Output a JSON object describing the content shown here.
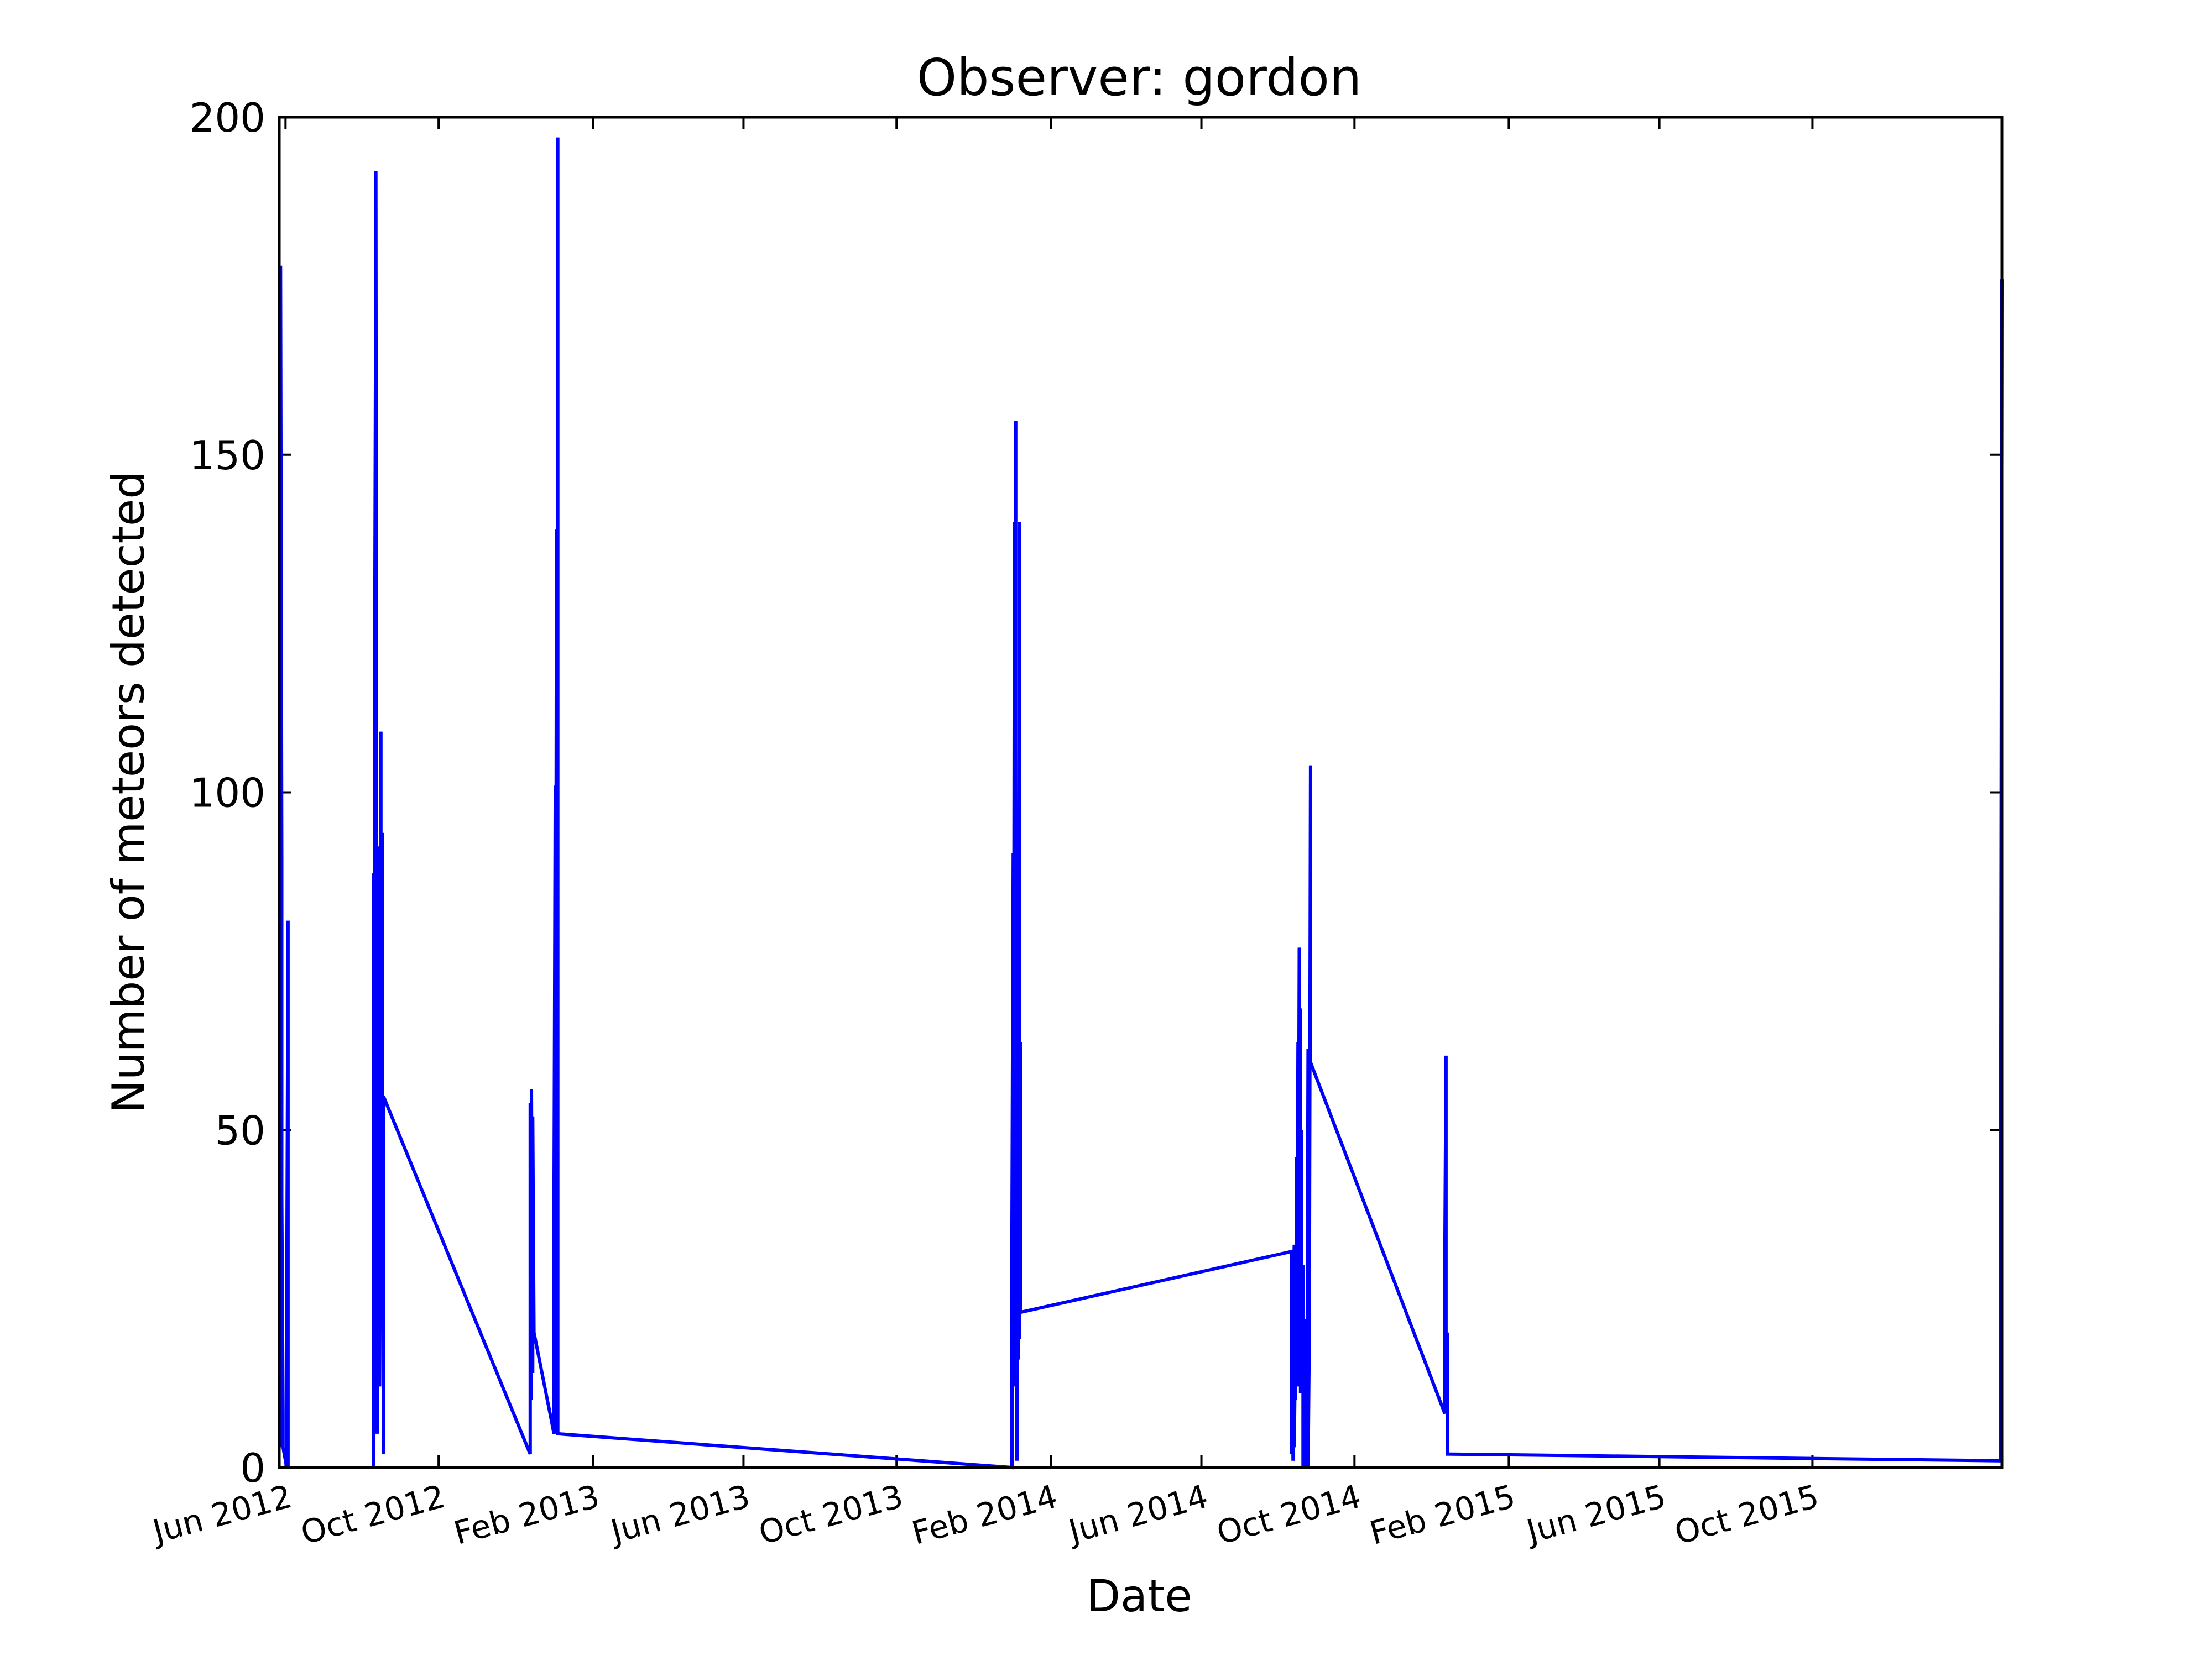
{
  "chart_data": {
    "type": "line",
    "title": "Observer: gordon",
    "xlabel": "Date",
    "ylabel": "Number of meteors detected",
    "xlim": [
      "2012-05-27",
      "2016-02-29"
    ],
    "ylim": [
      0,
      200
    ],
    "y_ticks": [
      0,
      50,
      100,
      150,
      200
    ],
    "x_ticks": [
      {
        "date": "2012-06-01",
        "label": "Jun 2012"
      },
      {
        "date": "2012-10-01",
        "label": "Oct 2012"
      },
      {
        "date": "2013-02-01",
        "label": "Feb 2013"
      },
      {
        "date": "2013-06-01",
        "label": "Jun 2013"
      },
      {
        "date": "2013-10-01",
        "label": "Oct 2013"
      },
      {
        "date": "2014-02-01",
        "label": "Feb 2014"
      },
      {
        "date": "2014-06-01",
        "label": "Jun 2014"
      },
      {
        "date": "2014-10-01",
        "label": "Oct 2014"
      },
      {
        "date": "2015-02-01",
        "label": "Feb 2015"
      },
      {
        "date": "2015-06-01",
        "label": "Jun 2015"
      },
      {
        "date": "2015-10-01",
        "label": "Oct 2015"
      }
    ],
    "grid": false,
    "line_color": "#0000ff",
    "series": [
      {
        "values": [
          {
            "x": "2012-05-27",
            "y": 3
          },
          {
            "x": "2012-05-27",
            "y": 45
          },
          {
            "x": "2012-05-28",
            "y": 120
          },
          {
            "x": "2012-05-28",
            "y": 178
          },
          {
            "x": "2012-05-29",
            "y": 90
          },
          {
            "x": "2012-05-29",
            "y": 40
          },
          {
            "x": "2012-05-30",
            "y": 8
          },
          {
            "x": "2012-05-30",
            "y": 3
          },
          {
            "x": "2012-06-02",
            "y": 0
          },
          {
            "x": "2012-06-02",
            "y": 25
          },
          {
            "x": "2012-06-03",
            "y": 81
          },
          {
            "x": "2012-06-03",
            "y": 0
          },
          {
            "x": "2012-08-10",
            "y": 0
          },
          {
            "x": "2012-08-10",
            "y": 88
          },
          {
            "x": "2012-08-11",
            "y": 20
          },
          {
            "x": "2012-08-11",
            "y": 114
          },
          {
            "x": "2012-08-12",
            "y": 182
          },
          {
            "x": "2012-08-12",
            "y": 192
          },
          {
            "x": "2012-08-13",
            "y": 5
          },
          {
            "x": "2012-08-13",
            "y": 90
          },
          {
            "x": "2012-08-14",
            "y": 30
          },
          {
            "x": "2012-08-15",
            "y": 92
          },
          {
            "x": "2012-08-15",
            "y": 12
          },
          {
            "x": "2012-08-16",
            "y": 109
          },
          {
            "x": "2012-08-16",
            "y": 40
          },
          {
            "x": "2012-08-17",
            "y": 94
          },
          {
            "x": "2012-08-17",
            "y": 76
          },
          {
            "x": "2012-08-18",
            "y": 2
          },
          {
            "x": "2012-08-18",
            "y": 55
          },
          {
            "x": "2012-12-13",
            "y": 2
          },
          {
            "x": "2012-12-13",
            "y": 54
          },
          {
            "x": "2012-12-14",
            "y": 10
          },
          {
            "x": "2012-12-14",
            "y": 56
          },
          {
            "x": "2012-12-15",
            "y": 14
          },
          {
            "x": "2012-12-15",
            "y": 52
          },
          {
            "x": "2012-12-16",
            "y": 20
          },
          {
            "x": "2013-01-01",
            "y": 5
          },
          {
            "x": "2013-01-01",
            "y": 40
          },
          {
            "x": "2013-01-02",
            "y": 101
          },
          {
            "x": "2013-01-02",
            "y": 5
          },
          {
            "x": "2013-01-03",
            "y": 139
          },
          {
            "x": "2013-01-03",
            "y": 6
          },
          {
            "x": "2013-01-04",
            "y": 197
          },
          {
            "x": "2013-01-04",
            "y": 5
          },
          {
            "x": "2014-01-01",
            "y": 0
          },
          {
            "x": "2014-01-01",
            "y": 36
          },
          {
            "x": "2014-01-02",
            "y": 91
          },
          {
            "x": "2014-01-02",
            "y": 12
          },
          {
            "x": "2014-01-03",
            "y": 140
          },
          {
            "x": "2014-01-03",
            "y": 20
          },
          {
            "x": "2014-01-04",
            "y": 155
          },
          {
            "x": "2014-01-04",
            "y": 30
          },
          {
            "x": "2014-01-05",
            "y": 85
          },
          {
            "x": "2014-01-05",
            "y": 1
          },
          {
            "x": "2014-01-06",
            "y": 95
          },
          {
            "x": "2014-01-06",
            "y": 16
          },
          {
            "x": "2014-01-07",
            "y": 140
          },
          {
            "x": "2014-01-07",
            "y": 19
          },
          {
            "x": "2014-01-08",
            "y": 63
          },
          {
            "x": "2014-01-08",
            "y": 23
          },
          {
            "x": "2014-08-12",
            "y": 32
          },
          {
            "x": "2014-08-12",
            "y": 2
          },
          {
            "x": "2014-08-13",
            "y": 21
          },
          {
            "x": "2014-08-13",
            "y": 1
          },
          {
            "x": "2014-08-14",
            "y": 33
          },
          {
            "x": "2014-08-14",
            "y": 3
          },
          {
            "x": "2014-08-15",
            "y": 20
          },
          {
            "x": "2014-08-15",
            "y": 10
          },
          {
            "x": "2014-08-16",
            "y": 46
          },
          {
            "x": "2014-08-16",
            "y": 15
          },
          {
            "x": "2014-08-17",
            "y": 63
          },
          {
            "x": "2014-08-17",
            "y": 12
          },
          {
            "x": "2014-08-18",
            "y": 77
          },
          {
            "x": "2014-08-18",
            "y": 20
          },
          {
            "x": "2014-08-19",
            "y": 68
          },
          {
            "x": "2014-08-19",
            "y": 11
          },
          {
            "x": "2014-08-20",
            "y": 50
          },
          {
            "x": "2014-08-20",
            "y": 25
          },
          {
            "x": "2014-08-21",
            "y": 30
          },
          {
            "x": "2014-08-21",
            "y": 0
          },
          {
            "x": "2014-08-22",
            "y": 22
          },
          {
            "x": "2014-08-22",
            "y": 14
          },
          {
            "x": "2014-08-24",
            "y": 0
          },
          {
            "x": "2014-08-25",
            "y": 62
          },
          {
            "x": "2014-08-25",
            "y": 0
          },
          {
            "x": "2014-08-26",
            "y": 20
          },
          {
            "x": "2014-08-27",
            "y": 104
          },
          {
            "x": "2014-08-27",
            "y": 60
          },
          {
            "x": "2014-12-12",
            "y": 8
          },
          {
            "x": "2014-12-12",
            "y": 30
          },
          {
            "x": "2014-12-13",
            "y": 61
          },
          {
            "x": "2014-12-13",
            "y": 10
          },
          {
            "x": "2014-12-14",
            "y": 20
          },
          {
            "x": "2014-12-14",
            "y": 2
          },
          {
            "x": "2016-02-28",
            "y": 1
          },
          {
            "x": "2016-02-28",
            "y": 45
          },
          {
            "x": "2016-02-29",
            "y": 176
          }
        ]
      }
    ]
  }
}
